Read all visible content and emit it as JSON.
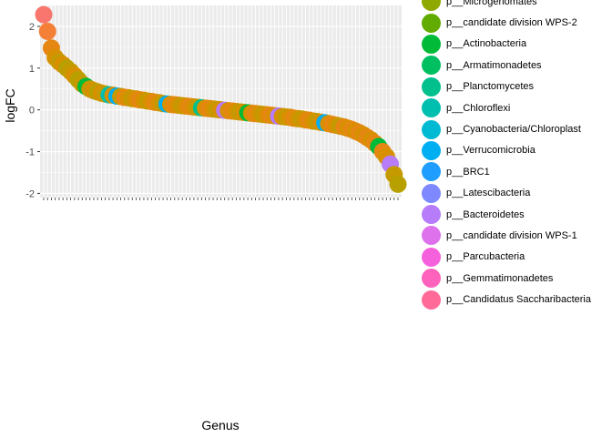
{
  "chart_data": {
    "type": "scatter",
    "title": "",
    "xlabel": "Genus",
    "ylabel": "logFC",
    "ylim": [
      -2.1,
      2.5
    ],
    "yticks": [
      -2,
      -1,
      0,
      1,
      2
    ],
    "grid": true,
    "legend_position": "right",
    "legend": [
      {
        "name": "p__Microgenomates",
        "color": "#8FA900"
      },
      {
        "name": "p__candidate division WPS-2",
        "color": "#62AB00"
      },
      {
        "name": "p__Actinobacteria",
        "color": "#00BA38"
      },
      {
        "name": "p__Armatimonadetes",
        "color": "#00BF60"
      },
      {
        "name": "p__Planctomycetes",
        "color": "#00C08D"
      },
      {
        "name": "p__Chloroflexi",
        "color": "#00BFAE"
      },
      {
        "name": "p__Cyanobacteria/Chloroplast",
        "color": "#00B9D3"
      },
      {
        "name": "p__Verrucomicrobia",
        "color": "#00AEF2"
      },
      {
        "name": "p__BRC1",
        "color": "#1F9EFF"
      },
      {
        "name": "p__Latescibacteria",
        "color": "#7E88FF"
      },
      {
        "name": "p__Bacteroidetes",
        "color": "#B67CFA"
      },
      {
        "name": "p__candidate division WPS-1",
        "color": "#DD72EC"
      },
      {
        "name": "p__Parcubacteria",
        "color": "#F561DD"
      },
      {
        "name": "p__Gemmatimonadetes",
        "color": "#FF62BC"
      },
      {
        "name": "p__Candidatus Saccharibacteria",
        "color": "#FF6A98"
      }
    ],
    "points": [
      {
        "i": 1,
        "y": 2.28,
        "c": "#F8766D"
      },
      {
        "i": 2,
        "y": 1.88,
        "c": "#F47F37"
      },
      {
        "i": 3,
        "y": 1.48,
        "c": "#E68613"
      },
      {
        "i": 4,
        "y": 1.25,
        "c": "#D89000"
      },
      {
        "i": 5,
        "y": 1.15,
        "c": "#C49A00"
      },
      {
        "i": 6,
        "y": 1.08,
        "c": "#D89000"
      },
      {
        "i": 7,
        "y": 1.0,
        "c": "#B8A000"
      },
      {
        "i": 8,
        "y": 0.92,
        "c": "#C49A00"
      },
      {
        "i": 9,
        "y": 0.82,
        "c": "#D89000"
      },
      {
        "i": 10,
        "y": 0.72,
        "c": "#B8A000"
      },
      {
        "i": 11,
        "y": 0.62,
        "c": "#C49A00"
      },
      {
        "i": 12,
        "y": 0.56,
        "c": "#00BA38"
      },
      {
        "i": 13,
        "y": 0.5,
        "c": "#C49A00"
      },
      {
        "i": 14,
        "y": 0.46,
        "c": "#D89000"
      },
      {
        "i": 15,
        "y": 0.43,
        "c": "#B8A000"
      },
      {
        "i": 16,
        "y": 0.4,
        "c": "#D89000"
      },
      {
        "i": 17,
        "y": 0.38,
        "c": "#C49A00"
      },
      {
        "i": 18,
        "y": 0.36,
        "c": "#00BFAE"
      },
      {
        "i": 19,
        "y": 0.35,
        "c": "#D89000"
      },
      {
        "i": 20,
        "y": 0.33,
        "c": "#00AEF2"
      },
      {
        "i": 21,
        "y": 0.32,
        "c": "#C49A00"
      },
      {
        "i": 22,
        "y": 0.3,
        "c": "#E68613"
      },
      {
        "i": 23,
        "y": 0.29,
        "c": "#D89000"
      },
      {
        "i": 24,
        "y": 0.27,
        "c": "#C49A00"
      },
      {
        "i": 25,
        "y": 0.26,
        "c": "#D89000"
      },
      {
        "i": 26,
        "y": 0.24,
        "c": "#E68613"
      },
      {
        "i": 27,
        "y": 0.23,
        "c": "#D89000"
      },
      {
        "i": 28,
        "y": 0.21,
        "c": "#C49A00"
      },
      {
        "i": 29,
        "y": 0.2,
        "c": "#D89000"
      },
      {
        "i": 30,
        "y": 0.18,
        "c": "#E68613"
      },
      {
        "i": 31,
        "y": 0.17,
        "c": "#D89000"
      },
      {
        "i": 32,
        "y": 0.15,
        "c": "#C49A00"
      },
      {
        "i": 33,
        "y": 0.14,
        "c": "#00AEF2"
      },
      {
        "i": 34,
        "y": 0.13,
        "c": "#D89000"
      },
      {
        "i": 35,
        "y": 0.12,
        "c": "#E68613"
      },
      {
        "i": 36,
        "y": 0.11,
        "c": "#D89000"
      },
      {
        "i": 37,
        "y": 0.1,
        "c": "#C49A00"
      },
      {
        "i": 38,
        "y": 0.09,
        "c": "#D89000"
      },
      {
        "i": 39,
        "y": 0.08,
        "c": "#E68613"
      },
      {
        "i": 40,
        "y": 0.07,
        "c": "#D89000"
      },
      {
        "i": 41,
        "y": 0.06,
        "c": "#C49A00"
      },
      {
        "i": 42,
        "y": 0.05,
        "c": "#00C08D"
      },
      {
        "i": 43,
        "y": 0.04,
        "c": "#D89000"
      },
      {
        "i": 44,
        "y": 0.03,
        "c": "#E68613"
      },
      {
        "i": 45,
        "y": 0.02,
        "c": "#D89000"
      },
      {
        "i": 46,
        "y": 0.01,
        "c": "#C49A00"
      },
      {
        "i": 47,
        "y": 0.0,
        "c": "#D89000"
      },
      {
        "i": 48,
        "y": -0.01,
        "c": "#B67CFA"
      },
      {
        "i": 49,
        "y": -0.02,
        "c": "#D89000"
      },
      {
        "i": 50,
        "y": -0.03,
        "c": "#E68613"
      },
      {
        "i": 51,
        "y": -0.04,
        "c": "#D89000"
      },
      {
        "i": 52,
        "y": -0.05,
        "c": "#C49A00"
      },
      {
        "i": 53,
        "y": -0.06,
        "c": "#D89000"
      },
      {
        "i": 54,
        "y": -0.07,
        "c": "#00BA38"
      },
      {
        "i": 55,
        "y": -0.08,
        "c": "#D89000"
      },
      {
        "i": 56,
        "y": -0.09,
        "c": "#E68613"
      },
      {
        "i": 57,
        "y": -0.1,
        "c": "#D89000"
      },
      {
        "i": 58,
        "y": -0.11,
        "c": "#C49A00"
      },
      {
        "i": 59,
        "y": -0.12,
        "c": "#D89000"
      },
      {
        "i": 60,
        "y": -0.13,
        "c": "#E68613"
      },
      {
        "i": 61,
        "y": -0.14,
        "c": "#D89000"
      },
      {
        "i": 62,
        "y": -0.15,
        "c": "#B67CFA"
      },
      {
        "i": 63,
        "y": -0.16,
        "c": "#D89000"
      },
      {
        "i": 64,
        "y": -0.17,
        "c": "#C49A00"
      },
      {
        "i": 65,
        "y": -0.18,
        "c": "#D89000"
      },
      {
        "i": 66,
        "y": -0.2,
        "c": "#E68613"
      },
      {
        "i": 67,
        "y": -0.21,
        "c": "#D89000"
      },
      {
        "i": 68,
        "y": -0.22,
        "c": "#C49A00"
      },
      {
        "i": 69,
        "y": -0.24,
        "c": "#D89000"
      },
      {
        "i": 70,
        "y": -0.25,
        "c": "#E68613"
      },
      {
        "i": 71,
        "y": -0.27,
        "c": "#D89000"
      },
      {
        "i": 72,
        "y": -0.28,
        "c": "#C49A00"
      },
      {
        "i": 73,
        "y": -0.3,
        "c": "#D89000"
      },
      {
        "i": 74,
        "y": -0.31,
        "c": "#00AEF2"
      },
      {
        "i": 75,
        "y": -0.33,
        "c": "#D89000"
      },
      {
        "i": 76,
        "y": -0.35,
        "c": "#E68613"
      },
      {
        "i": 77,
        "y": -0.37,
        "c": "#D89000"
      },
      {
        "i": 78,
        "y": -0.39,
        "c": "#C49A00"
      },
      {
        "i": 79,
        "y": -0.41,
        "c": "#E68613"
      },
      {
        "i": 80,
        "y": -0.44,
        "c": "#D89000"
      },
      {
        "i": 81,
        "y": -0.47,
        "c": "#E68613"
      },
      {
        "i": 82,
        "y": -0.51,
        "c": "#D89000"
      },
      {
        "i": 83,
        "y": -0.55,
        "c": "#E68613"
      },
      {
        "i": 84,
        "y": -0.6,
        "c": "#D89000"
      },
      {
        "i": 85,
        "y": -0.66,
        "c": "#E68613"
      },
      {
        "i": 86,
        "y": -0.72,
        "c": "#D89000"
      },
      {
        "i": 87,
        "y": -0.8,
        "c": "#E68613"
      },
      {
        "i": 88,
        "y": -0.88,
        "c": "#00BA38"
      },
      {
        "i": 89,
        "y": -1.0,
        "c": "#E68613"
      },
      {
        "i": 90,
        "y": -1.12,
        "c": "#D89000"
      },
      {
        "i": 91,
        "y": -1.3,
        "c": "#B67CFA"
      },
      {
        "i": 92,
        "y": -1.55,
        "c": "#C49A00"
      },
      {
        "i": 93,
        "y": -1.78,
        "c": "#B8A000"
      }
    ]
  }
}
